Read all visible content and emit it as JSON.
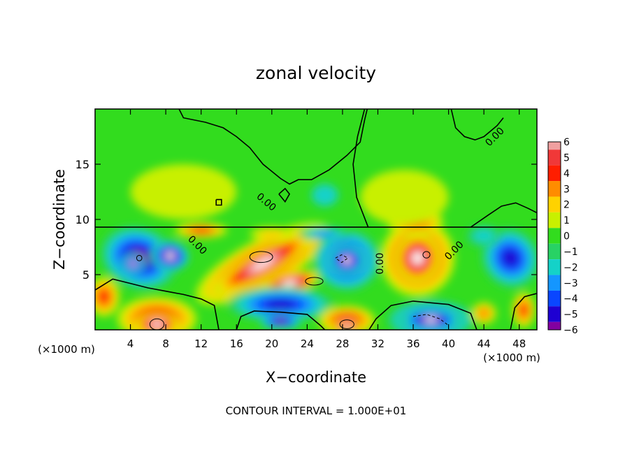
{
  "chart_data": {
    "type": "heatmap",
    "title": "zonal velocity",
    "xlabel": "X−coordinate",
    "ylabel": "Z−coordinate",
    "x_unit_left": "(×1000 m)",
    "x_unit_right": "(×1000 m)",
    "footer": "CONTOUR INTERVAL = 1.000E+01",
    "xlim": [
      0,
      50
    ],
    "ylim": [
      0,
      20
    ],
    "x_ticks": [
      4,
      8,
      12,
      16,
      20,
      24,
      28,
      32,
      36,
      40,
      44,
      48
    ],
    "y_ticks": [
      5,
      10,
      15
    ],
    "contour_labels": [
      {
        "text": "0.00",
        "x": 45.2,
        "y": 17.5,
        "angle": -45
      },
      {
        "text": "0.00",
        "x": 19.4,
        "y": 11.6,
        "angle": 40
      },
      {
        "text": "0.00",
        "x": 11.6,
        "y": 7.7,
        "angle": 45
      },
      {
        "text": "0.00",
        "x": 32.2,
        "y": 6.0,
        "angle": -90
      },
      {
        "text": "0.00",
        "x": 40.6,
        "y": 7.2,
        "angle": -45
      }
    ],
    "colorbar": {
      "ticks": [
        6,
        5,
        4,
        3,
        2,
        1,
        0,
        -1,
        -2,
        -3,
        -4,
        -5,
        -6
      ],
      "colors": [
        "#f0a0a0",
        "#f03838",
        "#ff1e00",
        "#ff8c00",
        "#ffd200",
        "#c8f000",
        "#32dc1e",
        "#28d264",
        "#14d2c8",
        "#1496ff",
        "#0a46ff",
        "#1e00d2",
        "#8200a0"
      ]
    },
    "blobs": [
      {
        "x": 5,
        "y": 6.5,
        "rx": 4.5,
        "ry": 2.8,
        "v": -6,
        "rot": -20
      },
      {
        "x": 8.5,
        "y": 6.7,
        "rx": 2.2,
        "ry": 1.4,
        "v": -7,
        "rot": -10
      },
      {
        "x": 4.3,
        "y": 6.0,
        "rx": 1.4,
        "ry": 0.9,
        "v": -7,
        "rot": 0
      },
      {
        "x": 19,
        "y": 6.0,
        "rx": 8.5,
        "ry": 2.2,
        "v": 6.5,
        "rot": 28
      },
      {
        "x": 19,
        "y": 6.0,
        "rx": 6.5,
        "ry": 1.2,
        "v": 7.5,
        "rot": 30
      },
      {
        "x": 22,
        "y": 4.2,
        "rx": 3.5,
        "ry": 1.0,
        "v": 7.5,
        "rot": 15
      },
      {
        "x": 28.5,
        "y": 6.3,
        "rx": 3.8,
        "ry": 2.8,
        "v": -6,
        "rot": 0
      },
      {
        "x": 28.5,
        "y": 6.3,
        "rx": 2.2,
        "ry": 1.4,
        "v": -7,
        "rot": 0
      },
      {
        "x": 36.5,
        "y": 6.5,
        "rx": 4.2,
        "ry": 3.5,
        "v": 6.5,
        "rot": -10
      },
      {
        "x": 36.5,
        "y": 6.5,
        "rx": 2.5,
        "ry": 2.2,
        "v": 7.5,
        "rot": -10
      },
      {
        "x": 36.2,
        "y": 9.8,
        "rx": 3.2,
        "ry": 1.2,
        "v": 4,
        "rot": 0
      },
      {
        "x": 47,
        "y": 6.5,
        "rx": 3.2,
        "ry": 2.8,
        "v": -5,
        "rot": 35
      },
      {
        "x": 21,
        "y": 2.3,
        "rx": 6,
        "ry": 1.6,
        "v": -5.5,
        "rot": 0
      },
      {
        "x": 21,
        "y": 0.8,
        "rx": 2.5,
        "ry": 0.8,
        "v": -6,
        "rot": 0
      },
      {
        "x": 7,
        "y": 1.0,
        "rx": 4.5,
        "ry": 2.0,
        "v": 5,
        "rot": 0
      },
      {
        "x": 7,
        "y": 0.5,
        "rx": 2.5,
        "ry": 1.0,
        "v": 7.5,
        "rot": 0
      },
      {
        "x": 28.5,
        "y": 0.8,
        "rx": 3.2,
        "ry": 1.4,
        "v": 5,
        "rot": 0
      },
      {
        "x": 28.5,
        "y": 0.3,
        "rx": 1.8,
        "ry": 0.6,
        "v": 7.5,
        "rot": 0
      },
      {
        "x": 38,
        "y": 0.9,
        "rx": 5,
        "ry": 1.8,
        "v": -6,
        "rot": 0
      },
      {
        "x": 38,
        "y": 0.9,
        "rx": 3.5,
        "ry": 1.0,
        "v": -7.5,
        "rot": 0
      },
      {
        "x": 1,
        "y": 3.0,
        "rx": 1.8,
        "ry": 1.8,
        "v": 4.5,
        "rot": 0
      },
      {
        "x": 48.5,
        "y": 1.8,
        "rx": 1.3,
        "ry": 1.6,
        "v": 4.5,
        "rot": 0
      },
      {
        "x": 44,
        "y": 1.5,
        "rx": 1.4,
        "ry": 1.0,
        "v": 3,
        "rot": 0
      },
      {
        "x": 12,
        "y": 9.0,
        "rx": 3.0,
        "ry": 0.7,
        "v": 4,
        "rot": 0
      },
      {
        "x": 20,
        "y": 8.7,
        "rx": 2.5,
        "ry": 0.6,
        "v": 2,
        "rot": 0
      },
      {
        "x": 26,
        "y": 8.7,
        "rx": 3.0,
        "ry": 0.6,
        "v": -3,
        "rot": 0
      },
      {
        "x": 44,
        "y": 8.5,
        "rx": 2.0,
        "ry": 1.0,
        "v": -2.5,
        "rot": 0
      },
      {
        "x": 10,
        "y": 12.5,
        "rx": 6,
        "ry": 2.5,
        "v": 1,
        "rot": 0
      },
      {
        "x": 35,
        "y": 12.0,
        "rx": 5,
        "ry": 2.5,
        "v": 1,
        "rot": 0
      },
      {
        "x": 26,
        "y": 12.2,
        "rx": 1.5,
        "ry": 1.0,
        "v": -1.5,
        "rot": 0
      }
    ],
    "zero_contours": [
      [
        [
          9.5,
          20
        ],
        [
          10,
          19.2
        ],
        [
          12.5,
          18.8
        ],
        [
          14.5,
          18.3
        ],
        [
          16,
          17.5
        ],
        [
          17.5,
          16.5
        ],
        [
          19,
          15
        ],
        [
          21,
          13.7
        ],
        [
          22,
          13.2
        ],
        [
          23,
          13.6
        ],
        [
          24.5,
          13.6
        ],
        [
          26.5,
          14.5
        ],
        [
          28.5,
          15.8
        ],
        [
          30,
          17
        ],
        [
          30.5,
          19
        ],
        [
          30.8,
          20
        ]
      ],
      [
        [
          30.9,
          9.3
        ],
        [
          29.6,
          12
        ],
        [
          29.2,
          15
        ],
        [
          29.7,
          17.5
        ],
        [
          30.5,
          20
        ]
      ],
      [
        [
          40.3,
          20
        ],
        [
          40.8,
          18.3
        ],
        [
          41.8,
          17.5
        ],
        [
          43,
          17.2
        ],
        [
          44,
          17.5
        ],
        [
          45.5,
          18.5
        ],
        [
          46.2,
          19.2
        ]
      ],
      [
        [
          42.5,
          9.3
        ],
        [
          44.5,
          10.4
        ],
        [
          46,
          11.2
        ],
        [
          47.6,
          11.5
        ],
        [
          49,
          11.0
        ],
        [
          50,
          10.6
        ]
      ],
      [
        [
          0,
          9.3
        ],
        [
          10,
          9.3
        ],
        [
          20,
          9.3
        ],
        [
          30,
          9.3
        ],
        [
          42,
          9.3
        ],
        [
          50,
          9.3
        ]
      ],
      [
        [
          0,
          3.6
        ],
        [
          2,
          4.6
        ],
        [
          4,
          4.2
        ],
        [
          6,
          3.8
        ],
        [
          8,
          3.5
        ],
        [
          10,
          3.2
        ],
        [
          12,
          2.8
        ],
        [
          13.5,
          2.2
        ],
        [
          14,
          0
        ]
      ],
      [
        [
          16,
          0
        ],
        [
          16.5,
          1.2
        ],
        [
          18,
          1.7
        ],
        [
          21,
          1.6
        ],
        [
          24,
          1.4
        ],
        [
          25.5,
          0.4
        ],
        [
          26,
          0
        ]
      ],
      [
        [
          31,
          0
        ],
        [
          31.8,
          1.0
        ],
        [
          33.5,
          2.2
        ],
        [
          36,
          2.6
        ],
        [
          40,
          2.3
        ],
        [
          42.5,
          1.5
        ],
        [
          43.2,
          0
        ]
      ],
      [
        [
          47,
          0
        ],
        [
          47.5,
          2.0
        ],
        [
          48.6,
          3.0
        ],
        [
          50,
          3.3
        ]
      ],
      [
        [
          20.8,
          12.3
        ],
        [
          21.5,
          11.6
        ],
        [
          22,
          12.3
        ],
        [
          21.5,
          12.8
        ],
        [
          20.8,
          12.3
        ]
      ],
      [
        [
          13.7,
          11.8
        ],
        [
          14.3,
          11.8
        ],
        [
          14.3,
          11.3
        ],
        [
          13.7,
          11.3
        ],
        [
          13.7,
          11.8
        ]
      ]
    ],
    "neg_contours": [
      [
        [
          27.2,
          6.5
        ],
        [
          27.9,
          6.8
        ],
        [
          28.6,
          6.5
        ],
        [
          27.9,
          6.1
        ],
        [
          27.2,
          6.5
        ]
      ],
      [
        [
          36,
          1.2
        ],
        [
          37.5,
          1.4
        ],
        [
          39,
          1.0
        ],
        [
          40,
          0.4
        ]
      ]
    ]
  }
}
